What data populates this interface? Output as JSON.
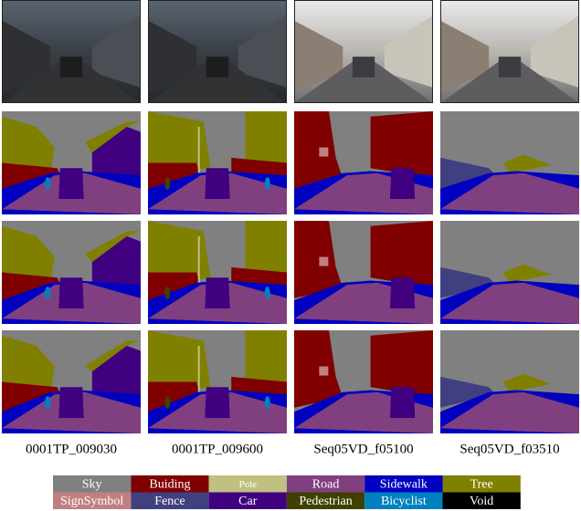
{
  "columns": [
    {
      "label": "0001TP_009030"
    },
    {
      "label": "0001TP_009600"
    },
    {
      "label": "Seq05VD_f05100"
    },
    {
      "label": "Seq05VD_f03510"
    }
  ],
  "legend": [
    {
      "name": "Sky",
      "color": "#808080"
    },
    {
      "name": "Buiding",
      "color": "#800000"
    },
    {
      "name": "Pole",
      "color": "#c0c080"
    },
    {
      "name": "Road",
      "color": "#804080"
    },
    {
      "name": "Sidewalk",
      "color": "#0000c0"
    },
    {
      "name": "Tree",
      "color": "#808000"
    },
    {
      "name": "SignSymbol",
      "color": "#c08080"
    },
    {
      "name": "Fence",
      "color": "#404080"
    },
    {
      "name": "Car",
      "color": "#400080"
    },
    {
      "name": "Pedestrian",
      "color": "#404000"
    },
    {
      "name": "Bicyclist",
      "color": "#0080c0"
    },
    {
      "name": "Void",
      "color": "#000000"
    }
  ]
}
